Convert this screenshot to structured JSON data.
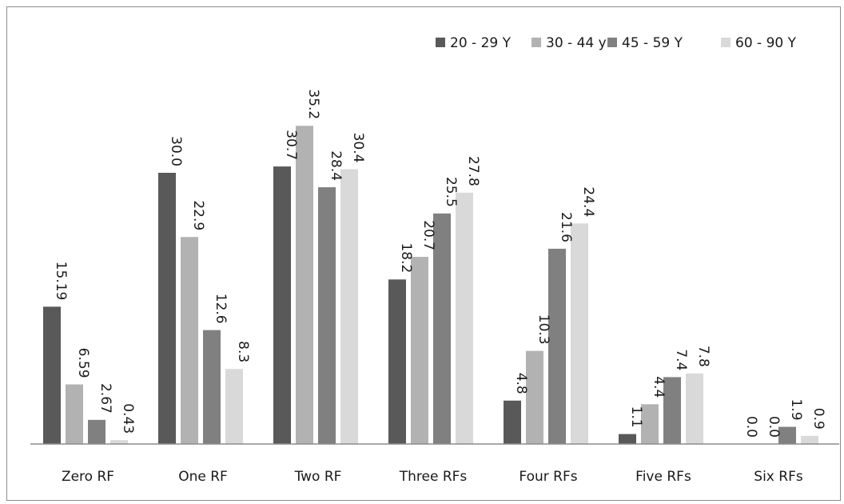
{
  "chart_data": {
    "type": "bar",
    "categories": [
      "Zero RF",
      "One RF",
      "Two RF",
      "Three RFs",
      "Four RFs",
      "Five RFs",
      "Six RFs"
    ],
    "series": [
      {
        "name": "20 - 29 Y",
        "color": "#595959",
        "values": [
          15.19,
          30.0,
          30.7,
          18.2,
          4.8,
          1.1,
          0.0
        ],
        "labels": [
          "15.19",
          "30.0",
          "30.7",
          "18.2",
          "4.8",
          "1.1",
          "0.0"
        ]
      },
      {
        "name": "30 - 44 y",
        "color": "#b2b2b2",
        "values": [
          6.59,
          22.9,
          35.2,
          20.7,
          10.3,
          4.4,
          0.0
        ],
        "labels": [
          "6.59",
          "22.9",
          "35.2",
          "20.7",
          "10.3",
          "4.4",
          "0.0"
        ]
      },
      {
        "name": "45 - 59 Y",
        "color": "#808080",
        "values": [
          2.67,
          12.6,
          28.4,
          25.5,
          21.6,
          7.4,
          1.9
        ],
        "labels": [
          "2.67",
          "12.6",
          "28.4",
          "25.5",
          "21.6",
          "7.4",
          "1.9"
        ]
      },
      {
        "name": "60 - 90 Y",
        "color": "#d9d9d9",
        "values": [
          0.43,
          8.3,
          30.4,
          27.8,
          24.4,
          7.8,
          0.9
        ],
        "labels": [
          "0.43",
          "8.3",
          "30.4",
          "27.8",
          "24.4",
          "7.8",
          "0.9"
        ]
      }
    ],
    "title": "",
    "xlabel": "",
    "ylabel": "",
    "ylim": [
      0,
      40
    ],
    "grid": false,
    "legend_position": "top-right"
  }
}
